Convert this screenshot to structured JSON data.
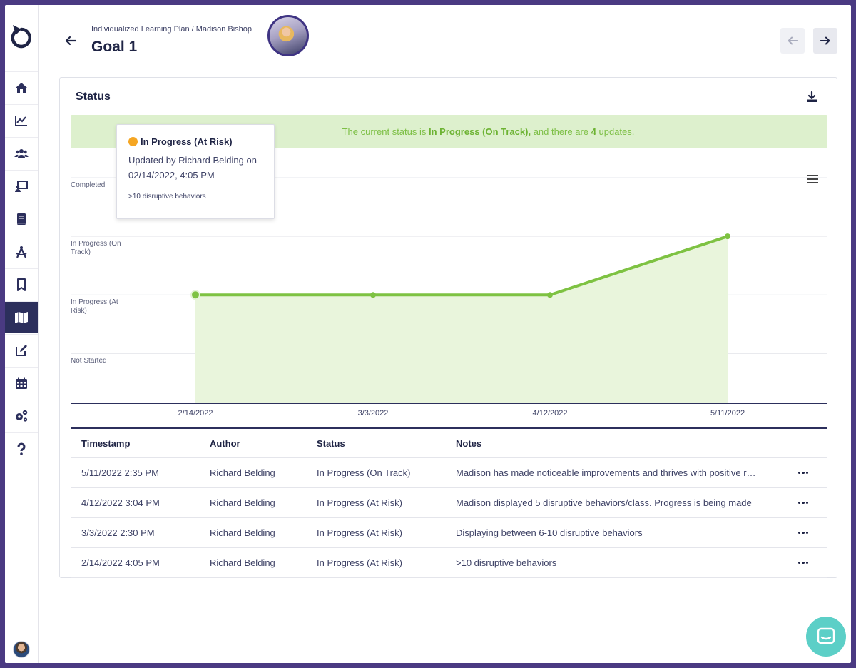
{
  "header": {
    "breadcrumb": "Individualized Learning Plan / Madison Bishop",
    "title": "Goal 1"
  },
  "sidebar": {
    "items": [
      {
        "name": "home-icon"
      },
      {
        "name": "chart-icon"
      },
      {
        "name": "users-icon"
      },
      {
        "name": "presentation-icon"
      },
      {
        "name": "book-icon"
      },
      {
        "name": "compass-icon"
      },
      {
        "name": "bookmark-icon"
      },
      {
        "name": "map-icon",
        "active": true
      },
      {
        "name": "edit-icon"
      },
      {
        "name": "calendar-icon"
      },
      {
        "name": "settings-icon"
      },
      {
        "name": "help-icon"
      }
    ]
  },
  "status_card": {
    "title": "Status",
    "banner": {
      "prefix": "The current status is ",
      "status": "In Progress (On Track),",
      "middle": " and there are ",
      "count": "4",
      "suffix": " updates."
    }
  },
  "tooltip": {
    "status": "In Progress (At Risk)",
    "updated_line1": "Updated by Richard Belding on",
    "updated_line2": "02/14/2022, 4:05 PM",
    "note": ">10 disruptive behaviors"
  },
  "chart_data": {
    "type": "area",
    "categories": [
      "2/14/2022",
      "3/3/2022",
      "4/12/2022",
      "5/11/2022"
    ],
    "y_levels": [
      "Not Started",
      "In Progress (At Risk)",
      "In Progress (On Track)",
      "Completed"
    ],
    "y_labels": [
      "Completed",
      "In Progress (On Track)",
      "In Progress (At Risk)",
      "Not Started"
    ],
    "values": [
      1,
      1,
      1,
      2
    ],
    "ylim": [
      -0.75,
      3
    ],
    "grid": true,
    "line_color": "#7ec242",
    "fill_color": "#e9f5dc"
  },
  "table": {
    "headers": {
      "timestamp": "Timestamp",
      "author": "Author",
      "status": "Status",
      "notes": "Notes"
    },
    "rows": [
      {
        "timestamp": "5/11/2022 2:35 PM",
        "author": "Richard Belding",
        "status": "In Progress (On Track)",
        "notes": "Madison has made noticeable improvements and thrives with positive reinforcement"
      },
      {
        "timestamp": "4/12/2022 3:04 PM",
        "author": "Richard Belding",
        "status": "In Progress (At Risk)",
        "notes": "Madison displayed 5 disruptive behaviors/class. Progress is being made"
      },
      {
        "timestamp": "3/3/2022 2:30 PM",
        "author": "Richard Belding",
        "status": "In Progress (At Risk)",
        "notes": "Displaying between 6-10 disruptive behaviors"
      },
      {
        "timestamp": "2/14/2022 4:05 PM",
        "author": "Richard Belding",
        "status": "In Progress (At Risk)",
        "notes": ">10 disruptive behaviors"
      }
    ]
  }
}
